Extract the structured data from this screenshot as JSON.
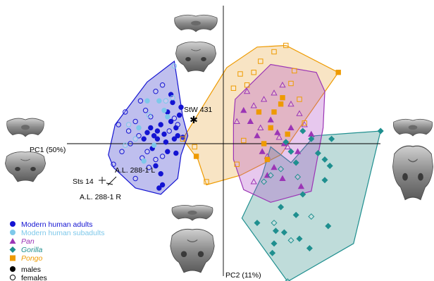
{
  "chart_data": {
    "type": "scatter",
    "x_axis_label": "PC1 (50%)",
    "y_axis_label": "PC2 (11%)",
    "xlim": [
      -1.0,
      1.0
    ],
    "ylim": [
      -1.0,
      1.0
    ],
    "grid": false,
    "legend_position": "bottom-left",
    "sex_legend": {
      "males": "males",
      "females": "females"
    },
    "annotations": [
      {
        "text": "StW 431",
        "x": -0.22,
        "y": 0.22
      },
      {
        "text": "A.L. 288-1 L",
        "x": -0.31,
        "y": -0.15
      },
      {
        "text": "Sts 14",
        "x": -0.39,
        "y": -0.24
      },
      {
        "text": "A.L. 288-1 R",
        "x": -0.35,
        "y": -0.26
      }
    ],
    "series": [
      {
        "name": "Modern human adults",
        "color": "#1414d2",
        "fill": "#2a2ac8",
        "marker": "circle",
        "hull": [
          [
            -0.45,
            0.39
          ],
          [
            -0.29,
            0.52
          ],
          [
            -0.24,
            0.17
          ],
          [
            -0.21,
            0.05
          ],
          [
            -0.25,
            -0.07
          ],
          [
            -0.27,
            -0.22
          ],
          [
            -0.37,
            -0.32
          ],
          [
            -0.52,
            -0.28
          ],
          [
            -0.65,
            -0.15
          ],
          [
            -0.68,
            -0.07
          ],
          [
            -0.64,
            0.12
          ]
        ],
        "points": [
          [
            -0.45,
            0.07,
            "m"
          ],
          [
            -0.43,
            0.1,
            "m"
          ],
          [
            -0.41,
            0.05,
            "m"
          ],
          [
            -0.39,
            0.08,
            "m"
          ],
          [
            -0.37,
            0.12,
            "m"
          ],
          [
            -0.35,
            0.06,
            "m"
          ],
          [
            -0.33,
            0.2,
            "m"
          ],
          [
            -0.31,
            0.14,
            "m"
          ],
          [
            -0.3,
            0.26,
            "m"
          ],
          [
            -0.28,
            0.1,
            "m"
          ],
          [
            -0.27,
            0.05,
            "m"
          ],
          [
            -0.26,
            0.18,
            "m"
          ],
          [
            -0.25,
            0.23,
            "m"
          ],
          [
            -0.33,
            -0.05,
            "m"
          ],
          [
            -0.4,
            -0.14,
            "m"
          ],
          [
            -0.37,
            -0.19,
            "m"
          ],
          [
            -0.38,
            -0.28,
            "m"
          ],
          [
            -0.36,
            -0.26,
            "m"
          ],
          [
            -0.47,
            0.03,
            "m"
          ],
          [
            -0.29,
            0.03,
            "m"
          ],
          [
            -0.24,
            0.04,
            "m"
          ],
          [
            -0.28,
            -0.06,
            "m"
          ],
          [
            -0.42,
            -0.03,
            "m"
          ],
          [
            -0.39,
            0.03,
            "m"
          ],
          [
            -0.31,
            0.31,
            "m"
          ],
          [
            -0.34,
            0.01,
            "m"
          ],
          [
            -0.62,
            0.12,
            "f"
          ],
          [
            -0.58,
            0.2,
            "f"
          ],
          [
            -0.52,
            0.14,
            "f"
          ],
          [
            -0.49,
            0.27,
            "f"
          ],
          [
            -0.46,
            0.21,
            "f"
          ],
          [
            -0.55,
            0.0,
            "f"
          ],
          [
            -0.5,
            0.05,
            "f"
          ],
          [
            -0.6,
            -0.05,
            "f"
          ],
          [
            -0.65,
            -0.13,
            "f"
          ],
          [
            -0.48,
            -0.09,
            "f"
          ],
          [
            -0.44,
            -0.15,
            "f"
          ],
          [
            -0.52,
            -0.22,
            "f"
          ],
          [
            -0.36,
            0.37,
            "f"
          ],
          [
            -0.4,
            0.33,
            "f"
          ],
          [
            -0.43,
            0.17,
            "f"
          ],
          [
            -0.29,
            0.16,
            "f"
          ],
          [
            -0.27,
            0.12,
            "f"
          ],
          [
            -0.32,
            0.08,
            "f"
          ],
          [
            -0.36,
            -0.08,
            "f"
          ],
          [
            -0.45,
            -0.05,
            "f"
          ],
          [
            -0.56,
            0.08,
            "f"
          ],
          [
            -0.4,
            -0.1,
            "f"
          ]
        ]
      },
      {
        "name": "Modern human subadults",
        "color": "#7ec8ea",
        "marker": "circle",
        "points": [
          [
            -0.5,
            0.1,
            "m"
          ],
          [
            -0.45,
            0.27,
            "m"
          ],
          [
            -0.41,
            -0.01,
            "m"
          ],
          [
            -0.35,
            0.21,
            "m"
          ],
          [
            -0.47,
            -0.11,
            "m"
          ],
          [
            -0.33,
            0.17,
            "m"
          ],
          [
            -0.38,
            0.27,
            "m"
          ],
          [
            -0.56,
            0.12,
            "f"
          ],
          [
            -0.44,
            0.18,
            "f"
          ],
          [
            -0.52,
            0.03,
            "f"
          ],
          [
            -0.34,
            0.27,
            "f"
          ],
          [
            -0.3,
            0.29,
            "f"
          ],
          [
            -0.29,
            0.49,
            "f"
          ],
          [
            -0.58,
            -0.01,
            "f"
          ]
        ]
      },
      {
        "name": "Pan",
        "color": "#9b35b5",
        "fill": "#b04ac8",
        "marker": "triangle",
        "hull": [
          [
            0.07,
            0.28
          ],
          [
            0.28,
            0.5
          ],
          [
            0.55,
            0.45
          ],
          [
            0.6,
            0.33
          ],
          [
            0.59,
            0.1
          ],
          [
            0.52,
            -0.3
          ],
          [
            0.28,
            -0.37
          ],
          [
            0.12,
            -0.29
          ],
          [
            0.06,
            -0.1
          ],
          [
            0.06,
            0.14
          ]
        ],
        "points": [
          [
            0.12,
            0.21,
            "m"
          ],
          [
            0.16,
            0.14,
            "m"
          ],
          [
            0.2,
            0.05,
            "m"
          ],
          [
            0.28,
            0.15,
            "m"
          ],
          [
            0.32,
            0.07,
            "m"
          ],
          [
            0.36,
            0.0,
            "m"
          ],
          [
            0.4,
            0.1,
            "m"
          ],
          [
            0.44,
            -0.05,
            "m"
          ],
          [
            0.23,
            -0.05,
            "m"
          ],
          [
            0.3,
            -0.15,
            "m"
          ],
          [
            0.26,
            -0.2,
            "m"
          ],
          [
            0.35,
            -0.22,
            "m"
          ],
          [
            0.46,
            -0.27,
            "m"
          ],
          [
            0.52,
            0.06,
            "m"
          ],
          [
            0.08,
            0.14,
            "f"
          ],
          [
            0.14,
            0.33,
            "f"
          ],
          [
            0.18,
            0.24,
            "f"
          ],
          [
            0.24,
            0.28,
            "f"
          ],
          [
            0.3,
            0.32,
            "f"
          ],
          [
            0.35,
            0.37,
            "f"
          ],
          [
            0.4,
            0.25,
            "f"
          ],
          [
            0.45,
            0.19,
            "f"
          ],
          [
            0.33,
            0.04,
            "f"
          ],
          [
            0.22,
            0.1,
            "f"
          ],
          [
            0.48,
            0.12,
            "f"
          ],
          [
            0.26,
            -0.08,
            "f"
          ],
          [
            0.18,
            -0.24,
            "f"
          ],
          [
            0.38,
            -0.02,
            "f"
          ]
        ]
      },
      {
        "name": "Gorilla",
        "color": "#1f8f8f",
        "fill": "#2a8a86",
        "marker": "diamond",
        "hull": [
          [
            0.28,
            -0.02
          ],
          [
            0.4,
            -0.12
          ],
          [
            0.54,
            0.05
          ],
          [
            0.93,
            0.08
          ],
          [
            0.77,
            -0.63
          ],
          [
            0.38,
            -0.87
          ],
          [
            0.11,
            -0.47
          ],
          [
            0.23,
            -0.2
          ]
        ],
        "points": [
          [
            0.37,
            0.01,
            "m"
          ],
          [
            0.4,
            -0.05,
            "m"
          ],
          [
            0.43,
            -0.12,
            "m"
          ],
          [
            0.47,
            0.08,
            "m"
          ],
          [
            0.52,
            0.03,
            "m"
          ],
          [
            0.56,
            -0.06,
            "m"
          ],
          [
            0.6,
            -0.1,
            "m"
          ],
          [
            0.63,
            -0.14,
            "m"
          ],
          [
            0.93,
            0.08,
            "m"
          ],
          [
            0.6,
            -0.23,
            "m"
          ],
          [
            0.47,
            -0.32,
            "m"
          ],
          [
            0.43,
            -0.45,
            "m"
          ],
          [
            0.34,
            -0.4,
            "m"
          ],
          [
            0.31,
            -0.55,
            "m"
          ],
          [
            0.3,
            -0.63,
            "m"
          ],
          [
            0.29,
            -0.69,
            "m"
          ],
          [
            0.45,
            -0.6,
            "m"
          ],
          [
            0.51,
            -0.66,
            "m"
          ],
          [
            0.36,
            -0.56,
            "m"
          ],
          [
            0.62,
            -0.52,
            "m"
          ],
          [
            0.2,
            -0.5,
            "m"
          ],
          [
            0.64,
            0.03,
            "m"
          ],
          [
            0.34,
            -0.16,
            "f"
          ],
          [
            0.28,
            -0.2,
            "f"
          ],
          [
            0.24,
            -0.24,
            "f"
          ],
          [
            0.3,
            -0.5,
            "f"
          ],
          [
            0.38,
            -0.87,
            "f"
          ],
          [
            0.4,
            -0.61,
            "f"
          ],
          [
            0.52,
            -0.46,
            "f"
          ],
          [
            0.44,
            -0.21,
            "f"
          ]
        ]
      },
      {
        "name": "Pongo",
        "color": "#ee9a00",
        "fill": "#e8a63a",
        "marker": "square",
        "hull": [
          [
            -0.24,
            0.03
          ],
          [
            0.02,
            0.48
          ],
          [
            0.2,
            0.61
          ],
          [
            0.37,
            0.62
          ],
          [
            0.68,
            0.45
          ],
          [
            0.34,
            -0.07
          ],
          [
            0.1,
            -0.2
          ],
          [
            -0.1,
            -0.26
          ],
          [
            -0.15,
            -0.1
          ]
        ],
        "points": [
          [
            -0.16,
            -0.08,
            "m"
          ],
          [
            0.24,
            0.0,
            "m"
          ],
          [
            0.28,
            0.1,
            "m"
          ],
          [
            0.3,
            0.2,
            "m"
          ],
          [
            0.34,
            0.25,
            "m"
          ],
          [
            0.35,
            0.29,
            "m"
          ],
          [
            0.38,
            0.06,
            "m"
          ],
          [
            0.26,
            -0.1,
            "m"
          ],
          [
            0.21,
            0.2,
            "m"
          ],
          [
            0.68,
            0.45,
            "m"
          ],
          [
            -0.24,
            0.03,
            "f"
          ],
          [
            -0.17,
            -0.02,
            "f"
          ],
          [
            -0.1,
            -0.24,
            "f"
          ],
          [
            0.06,
            0.35,
            "f"
          ],
          [
            0.1,
            0.44,
            "f"
          ],
          [
            0.18,
            0.45,
            "f"
          ],
          [
            0.22,
            0.52,
            "f"
          ],
          [
            0.3,
            0.58,
            "f"
          ],
          [
            0.37,
            0.62,
            "f"
          ],
          [
            0.42,
            0.46,
            "f"
          ],
          [
            0.14,
            0.37,
            "f"
          ],
          [
            0.4,
            0.38,
            "f"
          ],
          [
            0.45,
            0.28,
            "f"
          ],
          [
            0.48,
            0.13,
            "f"
          ],
          [
            0.12,
            0.02,
            "f"
          ],
          [
            0.08,
            -0.13,
            "f"
          ]
        ]
      }
    ]
  }
}
